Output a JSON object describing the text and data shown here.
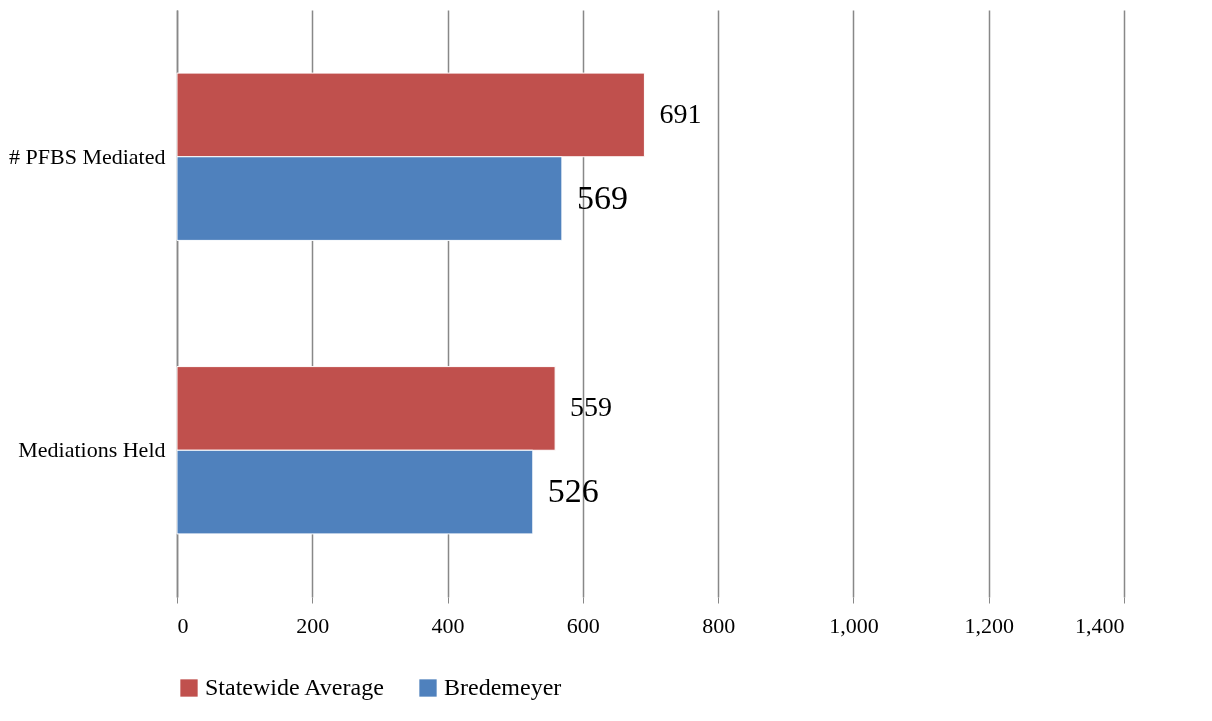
{
  "chart_data": {
    "type": "bar",
    "orientation": "horizontal",
    "categories": [
      "# PFBS Mediated",
      "Mediations Held"
    ],
    "series": [
      {
        "name": "Statewide Average",
        "color": "#c0504d",
        "values": [
          691,
          559
        ]
      },
      {
        "name": "Bredemeyer",
        "color": "#4f81bd",
        "values": [
          569,
          526
        ]
      }
    ],
    "xlim": [
      0,
      1400
    ],
    "xticks": [
      0,
      200,
      400,
      600,
      800,
      {
        "value": 1000,
        "label": "1,000"
      },
      {
        "value": 1200,
        "label": "1,200"
      },
      {
        "value": 1400,
        "label": "1,400"
      }
    ],
    "grid": "x",
    "legend": "bottom",
    "data_labels": true
  }
}
